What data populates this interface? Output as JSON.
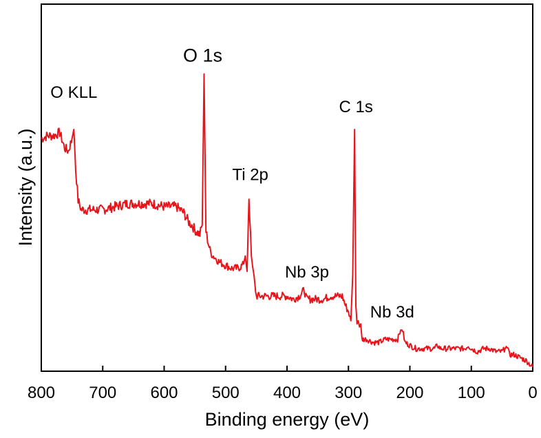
{
  "chart_data": {
    "type": "line",
    "title": "",
    "xlabel": "Binding energy (eV)",
    "ylabel": "Intensity (a.u.)",
    "xlim": [
      800,
      0
    ],
    "x_reversed": true,
    "ylim": [
      0,
      100
    ],
    "y_ticks_shown": false,
    "grid": false,
    "line_color": "#e8141b",
    "x_ticks": [
      800,
      700,
      600,
      500,
      400,
      300,
      200,
      100,
      0
    ],
    "x_tick_labels": [
      "800",
      "700",
      "600",
      "500",
      "400",
      "300",
      "200",
      "100",
      "0"
    ],
    "series": [
      {
        "x": [
          800,
          790,
          780,
          770,
          762,
          756,
          750,
          747,
          744,
          740,
          735,
          720,
          700,
          680,
          660,
          640,
          620,
          600,
          580,
          568,
          560,
          555,
          548,
          542,
          538,
          535,
          532,
          528,
          524,
          520,
          515,
          510,
          500,
          490,
          480,
          472,
          468,
          465,
          462,
          458,
          455,
          450,
          440,
          430,
          420,
          410,
          400,
          390,
          380,
          372,
          368,
          360,
          350,
          340,
          330,
          320,
          310,
          305,
          300,
          296,
          293,
          290,
          288,
          286,
          284,
          282,
          280,
          278,
          270,
          260,
          250,
          240,
          230,
          220,
          215,
          212,
          208,
          200,
          190,
          180,
          170,
          160,
          155,
          150,
          140,
          130,
          120,
          110,
          105,
          100,
          90,
          80,
          70,
          60,
          50,
          45,
          42,
          38,
          30,
          20,
          10,
          0
        ],
        "y": [
          74,
          75,
          75,
          76,
          71,
          70,
          74,
          77,
          64,
          54,
          51,
          51,
          51,
          52,
          53,
          53,
          53,
          52,
          52,
          50,
          47,
          46,
          44,
          43,
          46,
          95,
          44,
          40,
          37,
          36,
          35,
          34,
          33,
          32,
          32,
          33,
          36,
          31,
          55,
          36,
          31,
          23,
          23,
          23,
          23,
          23,
          23,
          22,
          23,
          25,
          22,
          22,
          22,
          22,
          23,
          23,
          23,
          20,
          18,
          15,
          30,
          77,
          20,
          14,
          15,
          13,
          14,
          9,
          9,
          8,
          8,
          9,
          9,
          9,
          12,
          12,
          8,
          7,
          6,
          6,
          6,
          6,
          7,
          6,
          6,
          6,
          6,
          6,
          7,
          6,
          5,
          6,
          6,
          5,
          5,
          6,
          7,
          4,
          4,
          3,
          2,
          0
        ]
      }
    ],
    "annotations": [
      {
        "text": "O KLL",
        "x": 747,
        "y": 77
      },
      {
        "text": "O 1s",
        "x": 535,
        "y": 95
      },
      {
        "text": "Ti 2p",
        "x": 462,
        "y": 55
      },
      {
        "text": "Nb 3p",
        "x": 372,
        "y": 25
      },
      {
        "text": "C 1s",
        "x": 290,
        "y": 77
      },
      {
        "text": "Nb 3d",
        "x": 212,
        "y": 12
      }
    ]
  }
}
